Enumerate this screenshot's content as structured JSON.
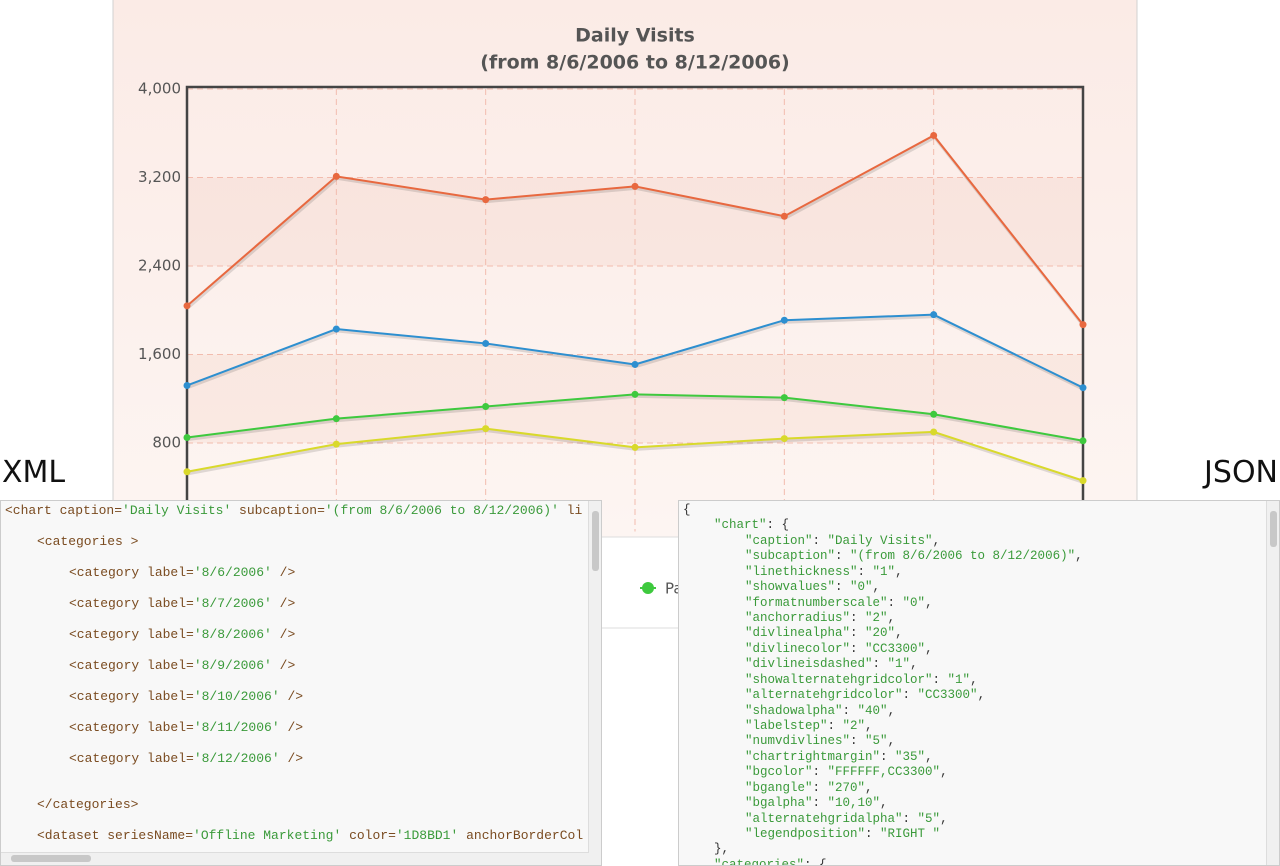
{
  "chart_data": {
    "type": "line",
    "title": "Daily Visits",
    "subtitle": "(from 8/6/2006 to 8/12/2006)",
    "categories": [
      null,
      null,
      null,
      null,
      null,
      null,
      null
    ],
    "series": [
      {
        "color": "#e8683f",
        "values": [
          2040,
          3210,
          3000,
          3120,
          2850,
          3580,
          1870
        ]
      },
      {
        "color": "#2d8fd0",
        "values": [
          1320,
          1830,
          1700,
          1510,
          1910,
          1960,
          1300
        ]
      },
      {
        "color": "#3ec93e",
        "values": [
          850,
          1020,
          1130,
          1240,
          1210,
          1060,
          820
        ]
      },
      {
        "color": "#d9d92b",
        "values": [
          540,
          790,
          930,
          760,
          840,
          900,
          460
        ]
      }
    ],
    "ylim": [
      0,
      4000
    ],
    "yticks": [
      800,
      {
        "value": 1600,
        "label": "1,600"
      },
      {
        "value": 2400,
        "label": "2,400"
      },
      {
        "value": 3200,
        "label": "3,200"
      },
      {
        "value": 4000,
        "label": "4,000"
      }
    ],
    "grid": true,
    "legend_fragment": "Pa"
  },
  "xml_panel": {
    "heading": "XML",
    "lines": [
      "<chart caption='Daily Visits' subcaption='(from 8/6/2006 to 8/12/2006)' li",
      "<categories >",
      "<category label='8/6/2006' />",
      "<category label='8/7/2006' />",
      "<category label='8/8/2006' />",
      "<category label='8/9/2006' />",
      "<category label='8/10/2006' />",
      "<category label='8/11/2006' />",
      "<category label='8/12/2006' />",
      "</categories>",
      "<dataset seriesName='Offline Marketing' color='1D8BD1' anchorBorderCol"
    ]
  },
  "json_panel": {
    "heading": "JSON",
    "lines": [
      "{",
      "\"chart\": {",
      "\"caption\": \"Daily Visits\",",
      "\"subcaption\": \"(from 8/6/2006 to 8/12/2006)\",",
      "\"linethickness\": \"1\",",
      "\"showvalues\": \"0\",",
      "\"formatnumberscale\": \"0\",",
      "\"anchorradius\": \"2\",",
      "\"divlinealpha\": \"20\",",
      "\"divlinecolor\": \"CC3300\",",
      "\"divlineisdashed\": \"1\",",
      "\"showalternatehgridcolor\": \"1\",",
      "\"alternatehgridcolor\": \"CC3300\",",
      "\"shadowalpha\": \"40\",",
      "\"labelstep\": \"2\",",
      "\"numvdivlines\": \"5\",",
      "\"chartrightmargin\": \"35\",",
      "\"bgcolor\": \"FFFFFF,CC3300\",",
      "\"bgangle\": \"270\",",
      "\"bgalpha\": \"10,10\",",
      "\"alternatehgridalpha\": \"5\",",
      "\"legendposition\": \"RIGHT \"",
      "},",
      "\"categories\": {"
    ]
  }
}
